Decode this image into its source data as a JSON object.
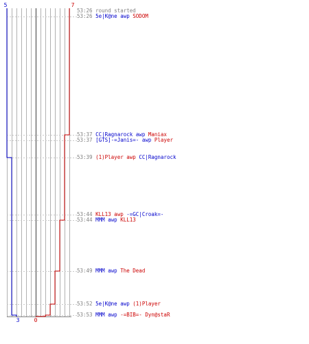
{
  "chart_data": {
    "type": "line",
    "title": "",
    "xlabel": "",
    "ylabel": "",
    "series": [
      {
        "name": "",
        "color": "#0000cc",
        "start_score": 5,
        "end_score": 3,
        "values": [
          5,
          5,
          5,
          5,
          4,
          4,
          4,
          4,
          4,
          3,
          3,
          3,
          3
        ]
      },
      {
        "name": "",
        "color": "#cc0000",
        "start_score": 7,
        "end_score": 0,
        "values": [
          7,
          7,
          6,
          6,
          6,
          6,
          5,
          4,
          3,
          2,
          1,
          0,
          0
        ]
      }
    ],
    "score_labels": {
      "blue_top": "5",
      "red_top": "7",
      "blue_bottom": "3",
      "red_bottom": "0"
    },
    "grid": true
  },
  "log": [
    {
      "time": "53:26",
      "parts": [
        {
          "text": "round started",
          "team": "sys"
        }
      ]
    },
    {
      "time": "53:26",
      "parts": [
        {
          "text": "5e|K@ne",
          "team": "blue"
        },
        {
          "text": " awp ",
          "team": "blue"
        },
        {
          "text": "SODOM",
          "team": "red"
        }
      ]
    },
    {
      "time": "53:37",
      "parts": [
        {
          "text": "CC|Ragnarock",
          "team": "blue"
        },
        {
          "text": " awp ",
          "team": "blue"
        },
        {
          "text": "Maniax",
          "team": "red"
        }
      ]
    },
    {
      "time": "53:37",
      "parts": [
        {
          "text": "[GTS]-=Janis=-",
          "team": "blue"
        },
        {
          "text": " awp ",
          "team": "blue"
        },
        {
          "text": "Player",
          "team": "red"
        }
      ]
    },
    {
      "time": "53:39",
      "parts": [
        {
          "text": "(1)Player",
          "team": "red"
        },
        {
          "text": " awp ",
          "team": "red"
        },
        {
          "text": "CC|Ragnarock",
          "team": "blue"
        }
      ]
    },
    {
      "time": "53:44",
      "parts": [
        {
          "text": "KLL13",
          "team": "red"
        },
        {
          "text": " awp ",
          "team": "red"
        },
        {
          "text": "-=GC|Croak=-",
          "team": "blue"
        }
      ]
    },
    {
      "time": "53:44",
      "parts": [
        {
          "text": "MMM",
          "team": "blue"
        },
        {
          "text": " awp ",
          "team": "blue"
        },
        {
          "text": "KLL13",
          "team": "red"
        }
      ]
    },
    {
      "time": "53:49",
      "parts": [
        {
          "text": "MMM",
          "team": "blue"
        },
        {
          "text": " awp ",
          "team": "blue"
        },
        {
          "text": "The Dead",
          "team": "red"
        }
      ]
    },
    {
      "time": "53:52",
      "parts": [
        {
          "text": "5e|K@ne",
          "team": "blue"
        },
        {
          "text": " awp ",
          "team": "blue"
        },
        {
          "text": "(1)Player",
          "team": "red"
        }
      ]
    },
    {
      "time": "53:53",
      "parts": [
        {
          "text": "MMM",
          "team": "blue"
        },
        {
          "text": " awp ",
          "team": "blue"
        },
        {
          "text": "-=BIB=- Dyn@staR",
          "team": "red"
        }
      ]
    }
  ],
  "colors": {
    "blue": "#0000cc",
    "red": "#cc0000",
    "grid": "#b0b0b0",
    "axis": "#808080",
    "sys": "#808080"
  }
}
